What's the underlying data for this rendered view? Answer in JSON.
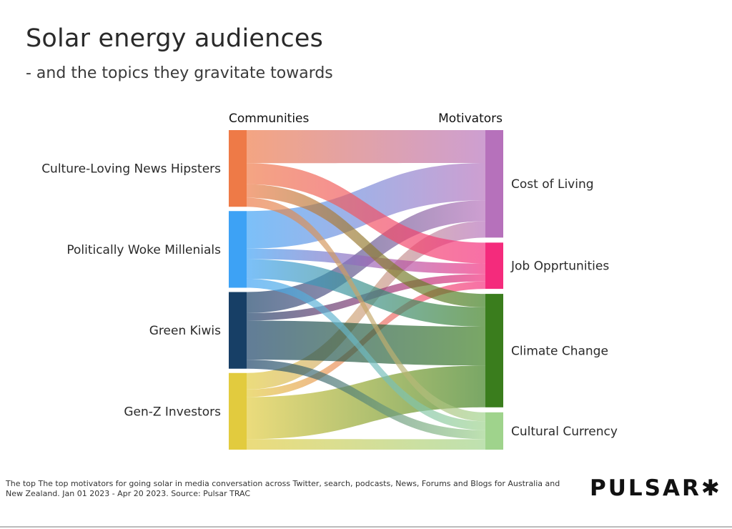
{
  "title": "Solar energy audiences",
  "subtitle": "- and the topics they gravitate towards",
  "footnote": "The top The top motivators for going solar in media conversation across Twitter, search, podcasts, News, Forums and Blogs for Australia and New Zealand. Jan 01 2023 - Apr 20 2023. Source: Pulsar TRAC",
  "logo": "PULSAR✱",
  "chart_data": {
    "type": "sankey",
    "left_header": "Communities",
    "right_header": "Motivators",
    "sources": [
      {
        "name": "Culture-Loving News Hipsters",
        "color": "#EE7A47"
      },
      {
        "name": "Politically Woke Millenials",
        "color": "#3DA2F5"
      },
      {
        "name": "Green Kiwis",
        "color": "#173F66"
      },
      {
        "name": "Gen-Z Investors",
        "color": "#E2CB3E"
      }
    ],
    "targets": [
      {
        "name": "Cost of Living",
        "color": "#B671BB"
      },
      {
        "name": "Job Opprtunities",
        "color": "#F42B7C"
      },
      {
        "name": "Climate Change",
        "color": "#3A7D1D"
      },
      {
        "name": "Cultural Currency",
        "color": "#9FD38C"
      }
    ],
    "links": [
      {
        "source": "Culture-Loving News Hipsters",
        "target": "Cost of Living",
        "value": 44
      },
      {
        "source": "Culture-Loving News Hipsters",
        "target": "Job Opprtunities",
        "value": 28
      },
      {
        "source": "Culture-Loving News Hipsters",
        "target": "Climate Change",
        "value": 18
      },
      {
        "source": "Culture-Loving News Hipsters",
        "target": "Cultural Currency",
        "value": 12
      },
      {
        "source": "Politically Woke Millenials",
        "target": "Cost of Living",
        "value": 50
      },
      {
        "source": "Politically Woke Millenials",
        "target": "Job Opprtunities",
        "value": 14
      },
      {
        "source": "Politically Woke Millenials",
        "target": "Climate Change",
        "value": 26
      },
      {
        "source": "Politically Woke Millenials",
        "target": "Cultural Currency",
        "value": 12
      },
      {
        "source": "Green Kiwis",
        "target": "Cost of Living",
        "value": 28
      },
      {
        "source": "Green Kiwis",
        "target": "Job Opprtunities",
        "value": 10
      },
      {
        "source": "Green Kiwis",
        "target": "Climate Change",
        "value": 52
      },
      {
        "source": "Green Kiwis",
        "target": "Cultural Currency",
        "value": 12
      },
      {
        "source": "Gen-Z Investors",
        "target": "Cost of Living",
        "value": 22
      },
      {
        "source": "Gen-Z Investors",
        "target": "Job Opprtunities",
        "value": 10
      },
      {
        "source": "Gen-Z Investors",
        "target": "Climate Change",
        "value": 56
      },
      {
        "source": "Gen-Z Investors",
        "target": "Cultural Currency",
        "value": 14
      }
    ]
  }
}
